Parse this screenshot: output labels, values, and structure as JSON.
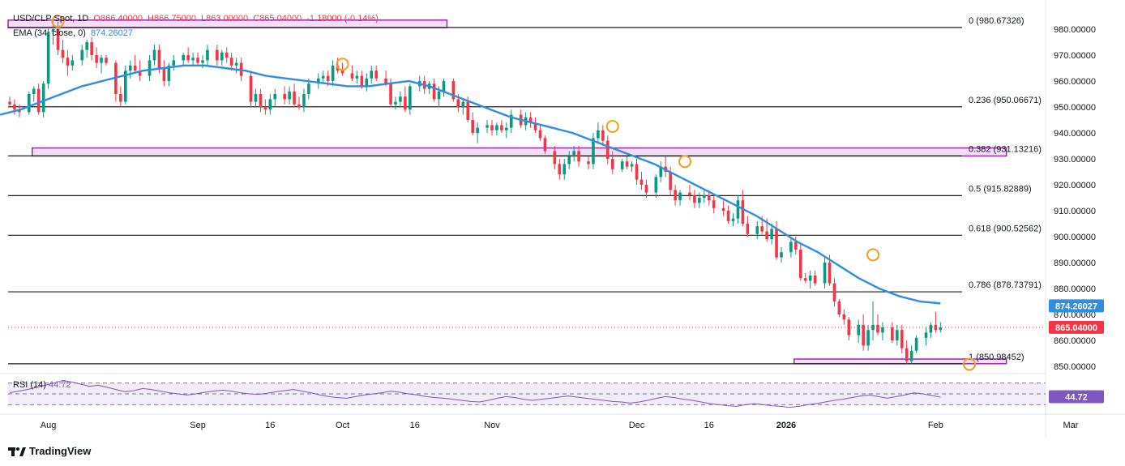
{
  "header": {
    "symbol": "USD/CLP Spot, 1D",
    "open": "O866.40000",
    "high": "H866.75000",
    "low": "L863.00000",
    "close": "C865.04000",
    "change": "-1.18000 (-0.14%)",
    "ema_label": "EMA (34, close, 0)",
    "ema_value": "874.26027"
  },
  "rsi": {
    "label": "RSI (14)",
    "value": "44.72",
    "badge": "44.72"
  },
  "brand": {
    "name": "TradingView"
  },
  "colors": {
    "up": "#089981",
    "down": "#f23645",
    "ema": "#2e8de5",
    "fib": "#1f1f1f",
    "zone_stroke": "#9c27b0",
    "zone_fill": "#f3d9f7",
    "marker": "#f59d1b",
    "rsi_line": "#7e57c2",
    "rsi_band": "#ede7f6",
    "price_badge": "#f23645",
    "ema_badge": "#2e8de5",
    "rsi_badge": "#7e57c2"
  },
  "chart_data": {
    "type": "candlestick",
    "title": "USD/CLP Spot, 1D",
    "y_range": [
      846,
      984
    ],
    "y_ticks": [
      "980.00000",
      "970.00000",
      "960.00000",
      "950.00000",
      "940.00000",
      "930.00000",
      "920.00000",
      "910.00000",
      "900.00000",
      "890.00000",
      "880.00000",
      "870.00000",
      "860.00000",
      "850.00000"
    ],
    "y_tick_values": [
      980,
      970,
      960,
      950,
      940,
      930,
      920,
      910,
      900,
      890,
      880,
      870,
      860,
      850
    ],
    "x_labels": [
      {
        "label": "Aug",
        "day": 8,
        "bold": false
      },
      {
        "label": "Sep",
        "day": 39,
        "bold": false
      },
      {
        "label": "16",
        "day": 54,
        "bold": false
      },
      {
        "label": "Oct",
        "day": 69,
        "bold": false
      },
      {
        "label": "16",
        "day": 84,
        "bold": false
      },
      {
        "label": "Nov",
        "day": 100,
        "bold": false
      },
      {
        "label": "Dec",
        "day": 130,
        "bold": false
      },
      {
        "label": "16",
        "day": 145,
        "bold": false
      },
      {
        "label": "2026",
        "day": 161,
        "bold": true
      },
      {
        "label": "Feb",
        "day": 192,
        "bold": false
      },
      {
        "label": "Mar",
        "day": 220,
        "bold": false
      }
    ],
    "fib_levels": [
      {
        "label": "0 (980.67326)",
        "value": 980.67326
      },
      {
        "label": "0.236 (950.06671)",
        "value": 950.06671
      },
      {
        "label": "0.382 (931.13216)",
        "value": 931.13216
      },
      {
        "label": "0.5 (915.82889)",
        "value": 915.82889
      },
      {
        "label": "0.618 (900.52562)",
        "value": 900.52562
      },
      {
        "label": "0.786 (878.73791)",
        "value": 878.73791
      },
      {
        "label": "1 (850.98452)",
        "value": 850.98452
      }
    ],
    "zones": [
      {
        "d0": 0,
        "d1": 91,
        "lo": 980.6,
        "hi": 983.5
      },
      {
        "d0": 5,
        "d1": 207,
        "lo": 931.1,
        "hi": 934.2
      },
      {
        "d0": 163,
        "d1": 207,
        "lo": 851.0,
        "hi": 852.8
      }
    ],
    "markers": [
      {
        "day": 10,
        "price": 983.0
      },
      {
        "day": 69,
        "price": 966.5
      },
      {
        "day": 125,
        "price": 942.5
      },
      {
        "day": 140,
        "price": 929.0
      },
      {
        "day": 179,
        "price": 893.0
      },
      {
        "day": 199,
        "price": 850.8
      }
    ],
    "last_price": {
      "value": 865.04,
      "label": "865.04000"
    },
    "ema_last": {
      "value": 874.26,
      "label": "874.26027"
    },
    "ohlc": [
      [
        0,
        952,
        954,
        950,
        951
      ],
      [
        1,
        951,
        953,
        947,
        949
      ],
      [
        2,
        949,
        951,
        946,
        948
      ],
      [
        4,
        948,
        956,
        947,
        955
      ],
      [
        5,
        955,
        958,
        952,
        957
      ],
      [
        6,
        957,
        959,
        947,
        948
      ],
      [
        7,
        948,
        960,
        946,
        959
      ],
      [
        8,
        959,
        981,
        957,
        979
      ],
      [
        9,
        979,
        983,
        974,
        980
      ],
      [
        10,
        980,
        983,
        970,
        972
      ],
      [
        11,
        972,
        976,
        967,
        969
      ],
      [
        12,
        969,
        972,
        962,
        966
      ],
      [
        13,
        966,
        970,
        964,
        968
      ],
      [
        15,
        968,
        974,
        966,
        972
      ],
      [
        16,
        972,
        976,
        969,
        975
      ],
      [
        17,
        975,
        977,
        968,
        970
      ],
      [
        18,
        970,
        973,
        965,
        967
      ],
      [
        19,
        967,
        970,
        963,
        969
      ],
      [
        20,
        969,
        970,
        966,
        967
      ],
      [
        22,
        967,
        968,
        952,
        955
      ],
      [
        23,
        955,
        958,
        950,
        952
      ],
      [
        24,
        952,
        966,
        951,
        964
      ],
      [
        25,
        964,
        968,
        961,
        966
      ],
      [
        26,
        966,
        970,
        963,
        964
      ],
      [
        27,
        964,
        968,
        960,
        962
      ],
      [
        29,
        962,
        970,
        960,
        968
      ],
      [
        30,
        968,
        974,
        966,
        972
      ],
      [
        31,
        972,
        974,
        963,
        965
      ],
      [
        32,
        965,
        968,
        958,
        960
      ],
      [
        33,
        960,
        967,
        958,
        966
      ],
      [
        34,
        966,
        970,
        964,
        968
      ],
      [
        36,
        968,
        971,
        966,
        970
      ],
      [
        37,
        970,
        973,
        967,
        968
      ],
      [
        38,
        968,
        971,
        966,
        969
      ],
      [
        39,
        969,
        971,
        966,
        967
      ],
      [
        40,
        967,
        970,
        965,
        968
      ],
      [
        41,
        968,
        974,
        966,
        972
      ],
      [
        43,
        972,
        974,
        966,
        968
      ],
      [
        44,
        968,
        972,
        966,
        971
      ],
      [
        45,
        971,
        973,
        967,
        969
      ],
      [
        46,
        969,
        971,
        964,
        966
      ],
      [
        47,
        966,
        969,
        963,
        967
      ],
      [
        48,
        967,
        969,
        960,
        962
      ],
      [
        50,
        962,
        964,
        950,
        952
      ],
      [
        51,
        952,
        957,
        950,
        955
      ],
      [
        52,
        955,
        957,
        948,
        950
      ],
      [
        53,
        950,
        953,
        947,
        949
      ],
      [
        54,
        949,
        955,
        947,
        953
      ],
      [
        55,
        953,
        957,
        950,
        955
      ],
      [
        57,
        955,
        958,
        951,
        953
      ],
      [
        58,
        953,
        958,
        951,
        956
      ],
      [
        59,
        956,
        959,
        950,
        951
      ],
      [
        60,
        951,
        954,
        949,
        950
      ],
      [
        61,
        950,
        957,
        948,
        955
      ],
      [
        62,
        955,
        961,
        953,
        959
      ],
      [
        64,
        959,
        963,
        957,
        961
      ],
      [
        65,
        961,
        964,
        959,
        962
      ],
      [
        66,
        962,
        964,
        958,
        960
      ],
      [
        67,
        960,
        968,
        958,
        966
      ],
      [
        68,
        966,
        969,
        963,
        964
      ],
      [
        69,
        964,
        967,
        962,
        963
      ],
      [
        71,
        963,
        966,
        960,
        961
      ],
      [
        72,
        961,
        964,
        959,
        962
      ],
      [
        73,
        962,
        964,
        957,
        958
      ],
      [
        74,
        958,
        963,
        956,
        961
      ],
      [
        75,
        961,
        966,
        959,
        964
      ],
      [
        76,
        964,
        966,
        960,
        961
      ],
      [
        78,
        961,
        964,
        958,
        959
      ],
      [
        79,
        959,
        961,
        950,
        951
      ],
      [
        80,
        951,
        954,
        949,
        952
      ],
      [
        81,
        952,
        956,
        950,
        954
      ],
      [
        82,
        954,
        958,
        948,
        949
      ],
      [
        83,
        949,
        959,
        947,
        958
      ],
      [
        85,
        958,
        962,
        956,
        960
      ],
      [
        86,
        960,
        962,
        955,
        957
      ],
      [
        87,
        957,
        960,
        955,
        959
      ],
      [
        88,
        959,
        961,
        952,
        953
      ],
      [
        89,
        953,
        958,
        950,
        956
      ],
      [
        90,
        956,
        961,
        954,
        960
      ],
      [
        92,
        960,
        961,
        952,
        953
      ],
      [
        93,
        953,
        955,
        948,
        950
      ],
      [
        94,
        950,
        953,
        947,
        952
      ],
      [
        95,
        952,
        954,
        944,
        945
      ],
      [
        96,
        945,
        948,
        939,
        940
      ],
      [
        97,
        940,
        944,
        936,
        942
      ],
      [
        99,
        942,
        945,
        940,
        943
      ],
      [
        100,
        943,
        945,
        939,
        941
      ],
      [
        101,
        941,
        944,
        939,
        943
      ],
      [
        102,
        943,
        945,
        940,
        941
      ],
      [
        103,
        941,
        944,
        938,
        942
      ],
      [
        104,
        942,
        949,
        940,
        947
      ],
      [
        106,
        947,
        949,
        942,
        943
      ],
      [
        107,
        943,
        948,
        941,
        946
      ],
      [
        108,
        946,
        948,
        942,
        944
      ],
      [
        109,
        944,
        946,
        940,
        941
      ],
      [
        110,
        941,
        943,
        937,
        938
      ],
      [
        111,
        938,
        939,
        932,
        933
      ],
      [
        113,
        933,
        935,
        926,
        928
      ],
      [
        114,
        928,
        930,
        922,
        924
      ],
      [
        115,
        924,
        930,
        922,
        928
      ],
      [
        116,
        928,
        933,
        926,
        931
      ],
      [
        117,
        931,
        935,
        929,
        933
      ],
      [
        118,
        933,
        935,
        927,
        929
      ],
      [
        120,
        929,
        931,
        926,
        928
      ],
      [
        121,
        928,
        940,
        926,
        938
      ],
      [
        122,
        938,
        944,
        936,
        941
      ],
      [
        123,
        941,
        943,
        935,
        937
      ],
      [
        124,
        937,
        939,
        928,
        930
      ],
      [
        125,
        930,
        933,
        924,
        926
      ],
      [
        127,
        926,
        930,
        925,
        929
      ],
      [
        128,
        929,
        931,
        926,
        927
      ],
      [
        129,
        927,
        929,
        925,
        928
      ],
      [
        130,
        928,
        930,
        920,
        922
      ],
      [
        131,
        922,
        925,
        918,
        920
      ],
      [
        132,
        920,
        922,
        915,
        917
      ],
      [
        134,
        917,
        924,
        915,
        923
      ],
      [
        135,
        923,
        929,
        921,
        927
      ],
      [
        136,
        927,
        931,
        923,
        925
      ],
      [
        137,
        925,
        927,
        916,
        918
      ],
      [
        138,
        918,
        920,
        912,
        914
      ],
      [
        139,
        914,
        918,
        912,
        917
      ],
      [
        141,
        917,
        920,
        914,
        916
      ],
      [
        142,
        916,
        918,
        911,
        913
      ],
      [
        143,
        913,
        917,
        911,
        915
      ],
      [
        144,
        915,
        918,
        913,
        916
      ],
      [
        145,
        916,
        918,
        912,
        914
      ],
      [
        146,
        914,
        916,
        909,
        911
      ],
      [
        148,
        911,
        914,
        908,
        910
      ],
      [
        149,
        910,
        912,
        905,
        906
      ],
      [
        150,
        906,
        909,
        904,
        907
      ],
      [
        151,
        907,
        916,
        905,
        914
      ],
      [
        152,
        914,
        918,
        904,
        905
      ],
      [
        153,
        905,
        908,
        900,
        901
      ],
      [
        155,
        901,
        906,
        899,
        904
      ],
      [
        156,
        904,
        908,
        901,
        902
      ],
      [
        157,
        902,
        907,
        898,
        899
      ],
      [
        158,
        899,
        905,
        897,
        903
      ],
      [
        159,
        903,
        906,
        891,
        892
      ],
      [
        160,
        892,
        896,
        890,
        894
      ],
      [
        162,
        894,
        900,
        892,
        898
      ],
      [
        163,
        898,
        900,
        893,
        895
      ],
      [
        164,
        895,
        897,
        883,
        884
      ],
      [
        165,
        884,
        886,
        882,
        883
      ],
      [
        166,
        883,
        887,
        880,
        885
      ],
      [
        167,
        885,
        887,
        881,
        882
      ],
      [
        169,
        882,
        892,
        880,
        890
      ],
      [
        170,
        890,
        893,
        881,
        882
      ],
      [
        171,
        882,
        884,
        873,
        875
      ],
      [
        172,
        875,
        876,
        869,
        870
      ],
      [
        173,
        870,
        872,
        866,
        868
      ],
      [
        174,
        868,
        869,
        860,
        862
      ],
      [
        176,
        862,
        868,
        859,
        866
      ],
      [
        177,
        866,
        870,
        856,
        858
      ],
      [
        178,
        858,
        866,
        856,
        864
      ],
      [
        179,
        864,
        875,
        860,
        866
      ],
      [
        180,
        866,
        870,
        862,
        863
      ],
      [
        181,
        863,
        867,
        860,
        865
      ],
      [
        183,
        865,
        867,
        859,
        860
      ],
      [
        184,
        860,
        866,
        858,
        864
      ],
      [
        185,
        864,
        866,
        855,
        857
      ],
      [
        186,
        857,
        860,
        851,
        852
      ],
      [
        187,
        852,
        858,
        851,
        856
      ],
      [
        188,
        856,
        862,
        855,
        861
      ],
      [
        190,
        861,
        865,
        858,
        863
      ],
      [
        191,
        863,
        867,
        861,
        866
      ],
      [
        192,
        866,
        871,
        863,
        864
      ],
      [
        193,
        864,
        867,
        863,
        865
      ]
    ],
    "rsi_range": [
      20,
      80
    ],
    "rsi_levels": [
      70,
      50,
      30
    ],
    "rsi": [
      52,
      55,
      58,
      62,
      66,
      70,
      75,
      72,
      68,
      64,
      66,
      62,
      58,
      54,
      56,
      60,
      58,
      55,
      52,
      50,
      48,
      50,
      53,
      55,
      57,
      55,
      52,
      50,
      49,
      51,
      54,
      56,
      58,
      55,
      52,
      48,
      45,
      43,
      42,
      45,
      48,
      50,
      52,
      55,
      53,
      50,
      48,
      45,
      43,
      42,
      40,
      38,
      36,
      35,
      38,
      42,
      45,
      43,
      40,
      38,
      40,
      42,
      44,
      46,
      44,
      42,
      40,
      38,
      36,
      35,
      33,
      35,
      38,
      42,
      45,
      43,
      40,
      38,
      35,
      32,
      30,
      28,
      27,
      30,
      32,
      30,
      28,
      27,
      25,
      27,
      30,
      32,
      35,
      38,
      40,
      43,
      46,
      48,
      45,
      42,
      45,
      48,
      52,
      50,
      47,
      44
    ],
    "series": [
      {
        "name": "EMA (34, close, 0)",
        "values": [
          947,
          949,
          952,
          955,
          958,
          960,
          962,
          964,
          965,
          966,
          966,
          965,
          964,
          962,
          961,
          960,
          959,
          958,
          958,
          959,
          960,
          958,
          955,
          952,
          949,
          946,
          944,
          942,
          940,
          937,
          934,
          931,
          928,
          924,
          920,
          916,
          912,
          908,
          903,
          898,
          894,
          889,
          884,
          880,
          877,
          875,
          874.26
        ]
      }
    ]
  }
}
